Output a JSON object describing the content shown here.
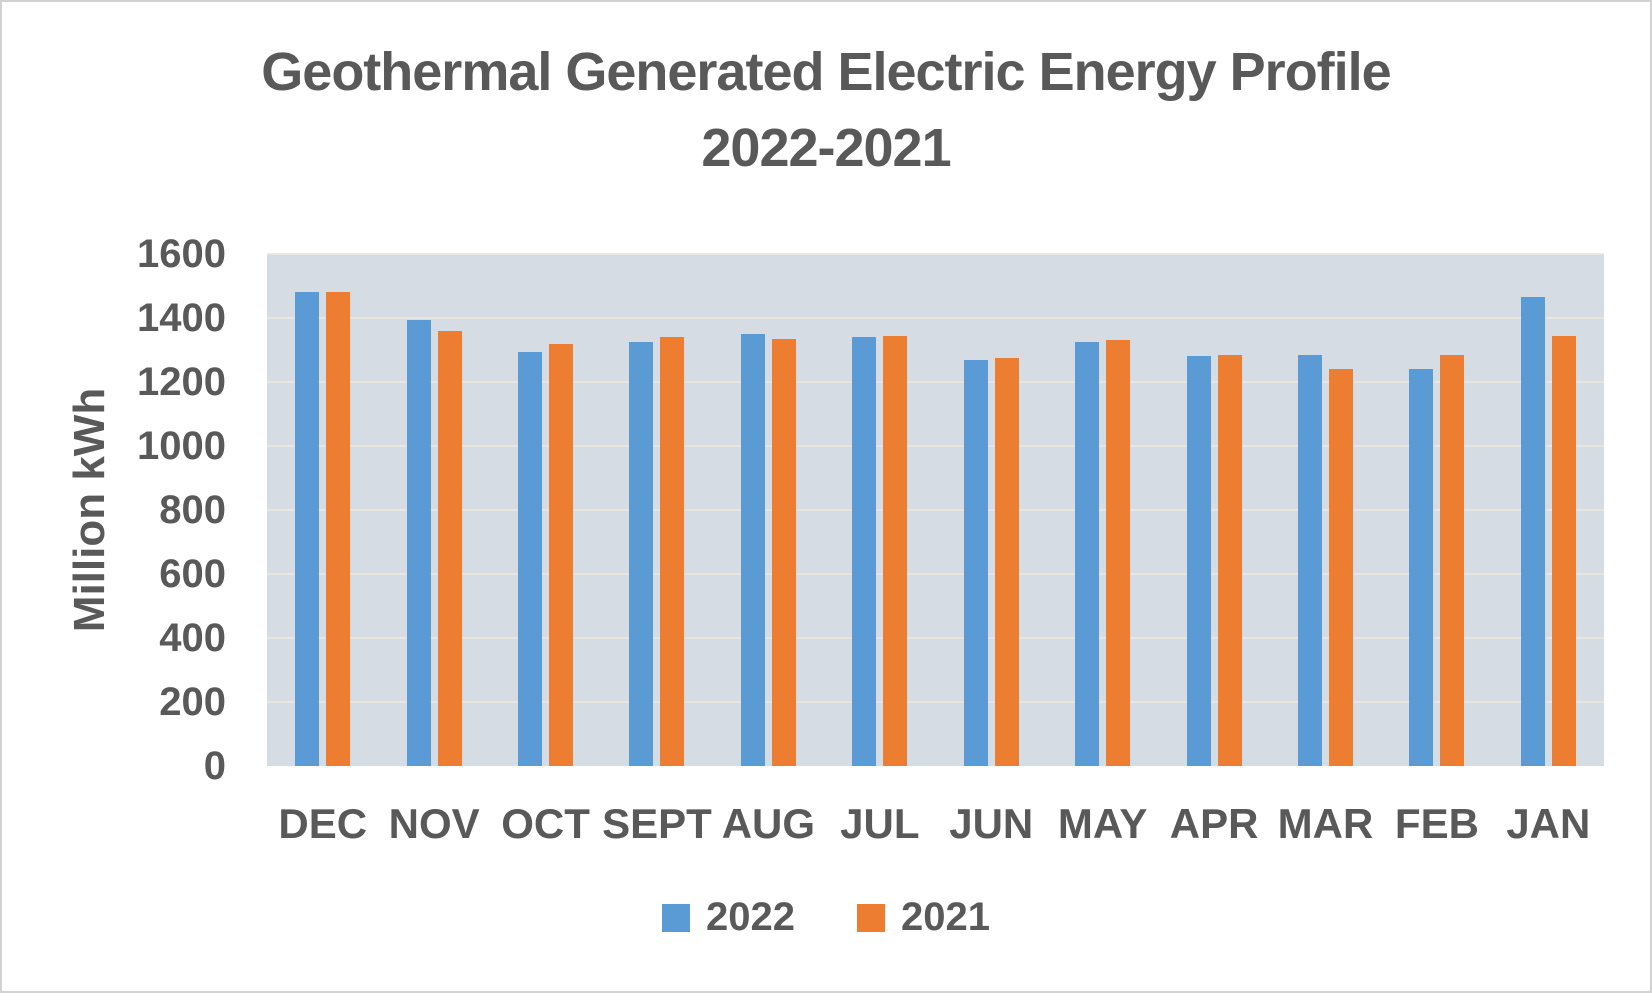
{
  "title": {
    "line1": "Geothermal Generated Electric Energy Profile",
    "line2": "2022-2021"
  },
  "y_axis": {
    "label": "Million kWh",
    "ticks": [
      0,
      200,
      400,
      600,
      800,
      1000,
      1200,
      1400,
      1600
    ]
  },
  "colors": {
    "text": "#595959",
    "plot_background": "#d6dce4",
    "gridline": "#ece7dd",
    "series_2022": "#5b9bd5",
    "series_2021": "#ed7d31"
  },
  "legend": {
    "items": [
      {
        "label": "2022",
        "color": "#5b9bd5"
      },
      {
        "label": "2021",
        "color": "#ed7d31"
      }
    ]
  },
  "chart_data": {
    "type": "bar",
    "title": "Geothermal Generated Electric Energy Profile 2022-2021",
    "xlabel": "",
    "ylabel": "Million kWh",
    "ylim": [
      0,
      1600
    ],
    "ytick_step": 200,
    "grid": true,
    "legend_position": "bottom",
    "categories": [
      "DEC",
      "NOV",
      "OCT",
      "SEPT",
      "AUG",
      "JUL",
      "JUN",
      "MAY",
      "APR",
      "MAR",
      "FEB",
      "JAN"
    ],
    "series": [
      {
        "name": "2022",
        "color": "#5b9bd5",
        "values": [
          1480,
          1395,
          1295,
          1325,
          1350,
          1340,
          1270,
          1325,
          1280,
          1285,
          1240,
          1465
        ]
      },
      {
        "name": "2021",
        "color": "#ed7d31",
        "values": [
          1480,
          1360,
          1320,
          1340,
          1335,
          1345,
          1275,
          1330,
          1285,
          1240,
          1285,
          1345
        ]
      }
    ]
  }
}
